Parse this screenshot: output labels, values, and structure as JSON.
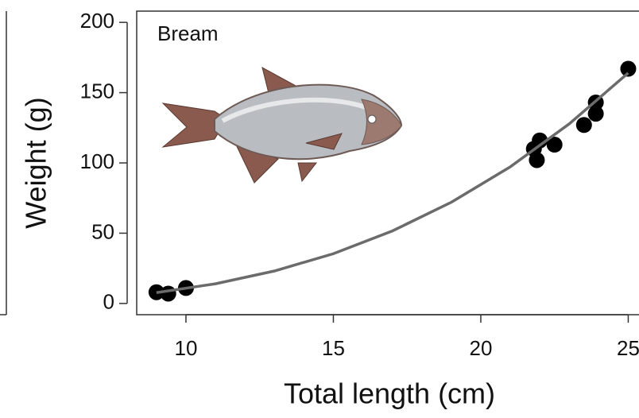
{
  "chart_data": {
    "type": "scatter",
    "annotation": "Bream",
    "x_label": "Total length (cm)",
    "y_label": "Weight (g)",
    "xlim": [
      8.33,
      25.4
    ],
    "ylim": [
      -8,
      208
    ],
    "xticks": [
      10,
      15,
      20,
      25
    ],
    "yticks": [
      0,
      50,
      100,
      150,
      200
    ],
    "series": [
      {
        "kind": "points",
        "color": "#000000",
        "x": [
          9,
          9.4,
          10,
          21.8,
          22.0,
          21.9,
          22.5,
          23.5,
          23.9,
          23.9,
          25
        ],
        "values": [
          8,
          7,
          11,
          110,
          116,
          102,
          113,
          127,
          135,
          143,
          167
        ]
      },
      {
        "kind": "line",
        "color": "#6b6b6b",
        "x": [
          9,
          11,
          13,
          15,
          17,
          19,
          21,
          23,
          25
        ],
        "values": [
          7.7,
          14.0,
          23.1,
          35.4,
          51.6,
          72.0,
          97.2,
          127.8,
          164
        ]
      }
    ]
  }
}
